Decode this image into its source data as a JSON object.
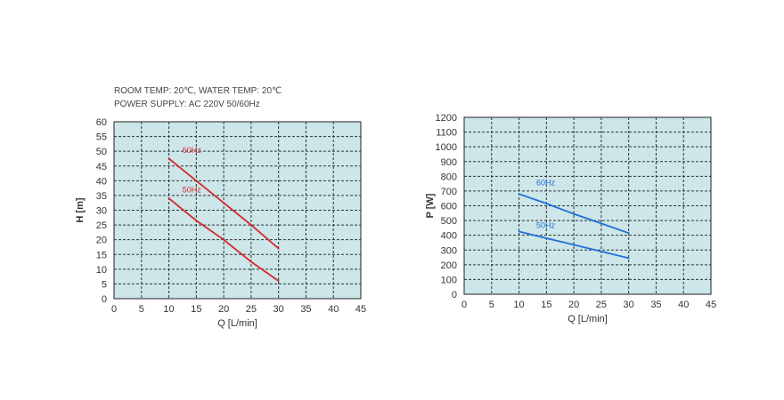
{
  "notes": {
    "line1": "ROOM TEMP: 20℃, WATER TEMP: 20℃",
    "line2": "POWER SUPPLY: AC 220V 50/60Hz"
  },
  "chart_data": [
    {
      "type": "line",
      "xlabel": "Q [L/min]",
      "ylabel": "H [m]",
      "xlim": [
        0,
        45
      ],
      "ylim": [
        0,
        60
      ],
      "xticks": [
        0,
        5,
        10,
        15,
        20,
        25,
        30,
        35,
        40,
        45
      ],
      "yticks": [
        0,
        5,
        10,
        15,
        20,
        25,
        30,
        35,
        40,
        45,
        50,
        55,
        60
      ],
      "grid": true,
      "plot_bg": "#cce6ea",
      "series": [
        {
          "name": "60Hz",
          "color": "#d42a2a",
          "x": [
            10,
            15,
            20,
            25,
            30
          ],
          "y": [
            47.5,
            40,
            32.5,
            25,
            17
          ]
        },
        {
          "name": "50Hz",
          "color": "#d42a2a",
          "x": [
            10,
            15,
            20,
            25,
            30
          ],
          "y": [
            34,
            26.5,
            20,
            12.5,
            6
          ]
        }
      ]
    },
    {
      "type": "line",
      "xlabel": "Q [L/min]",
      "ylabel": "P [W]",
      "xlim": [
        0,
        45
      ],
      "ylim": [
        0,
        1200
      ],
      "xticks": [
        0,
        5,
        10,
        15,
        20,
        25,
        30,
        35,
        40,
        45
      ],
      "yticks": [
        0,
        100,
        200,
        300,
        400,
        500,
        600,
        700,
        800,
        900,
        1000,
        1100,
        1200
      ],
      "grid": true,
      "plot_bg": "#cce6ea",
      "series": [
        {
          "name": "60Hz",
          "color": "#1f6fd6",
          "x": [
            10,
            15,
            20,
            25,
            30
          ],
          "y": [
            680,
            615,
            545,
            480,
            415
          ]
        },
        {
          "name": "50Hz",
          "color": "#1f6fd6",
          "x": [
            10,
            15,
            20,
            25,
            30
          ],
          "y": [
            425,
            380,
            335,
            290,
            245
          ]
        }
      ]
    }
  ]
}
